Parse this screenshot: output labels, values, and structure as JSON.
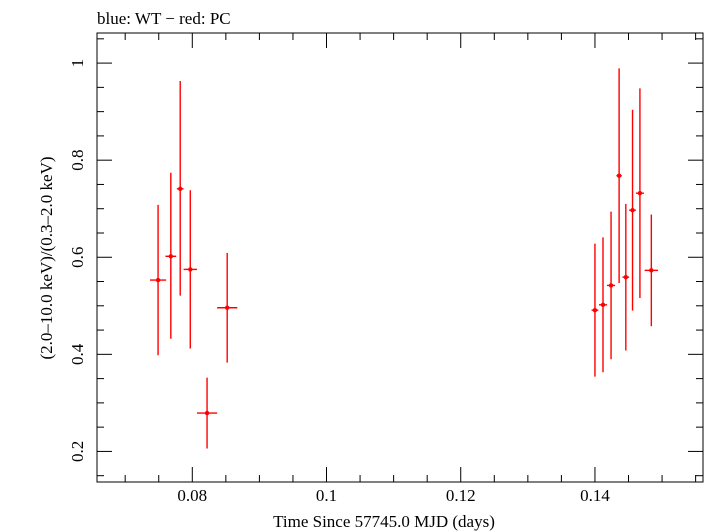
{
  "chart_data": {
    "type": "scatter",
    "title": "blue: WT − red: PC",
    "xlabel": "Time Since 57745.0 MJD (days)",
    "ylabel": "(2.0–10.0 keV)/(0.3–2.0 keV)",
    "xlim": [
      0.0658,
      0.1561
    ],
    "ylim": [
      0.137,
      1.062
    ],
    "x_ticks": [
      0.08,
      0.1,
      0.12,
      0.14
    ],
    "x_tick_labels": [
      "0.08",
      "0.1",
      "0.12",
      "0.14"
    ],
    "y_ticks": [
      0.2,
      0.4,
      0.6,
      0.8,
      1.0
    ],
    "y_tick_labels": [
      "0.2",
      "0.4",
      "0.6",
      "0.8",
      "1"
    ],
    "grid": false,
    "series": [
      {
        "color": "#ff0000",
        "points": [
          {
            "x": 0.0749,
            "xerr": 0.0012,
            "y": 0.553,
            "yerr_lo": 0.155,
            "yerr_hi": 0.155
          },
          {
            "x": 0.0768,
            "xerr": 0.0008,
            "y": 0.602,
            "yerr_lo": 0.17,
            "yerr_hi": 0.172
          },
          {
            "x": 0.0782,
            "xerr": 0.0005,
            "y": 0.741,
            "yerr_lo": 0.22,
            "yerr_hi": 0.222
          },
          {
            "x": 0.0797,
            "xerr": 0.001,
            "y": 0.575,
            "yerr_lo": 0.163,
            "yerr_hi": 0.163
          },
          {
            "x": 0.0822,
            "xerr": 0.0015,
            "y": 0.279,
            "yerr_lo": 0.073,
            "yerr_hi": 0.073
          },
          {
            "x": 0.0852,
            "xerr": 0.0015,
            "y": 0.496,
            "yerr_lo": 0.113,
            "yerr_hi": 0.113
          },
          {
            "x": 0.14,
            "xerr": 0.0005,
            "y": 0.491,
            "yerr_lo": 0.137,
            "yerr_hi": 0.137
          },
          {
            "x": 0.1412,
            "xerr": 0.0006,
            "y": 0.502,
            "yerr_lo": 0.139,
            "yerr_hi": 0.139
          },
          {
            "x": 0.1424,
            "xerr": 0.0006,
            "y": 0.542,
            "yerr_lo": 0.152,
            "yerr_hi": 0.152
          },
          {
            "x": 0.1436,
            "xerr": 0.0004,
            "y": 0.768,
            "yerr_lo": 0.221,
            "yerr_hi": 0.221
          },
          {
            "x": 0.1446,
            "xerr": 0.0005,
            "y": 0.559,
            "yerr_lo": 0.151,
            "yerr_hi": 0.151
          },
          {
            "x": 0.1456,
            "xerr": 0.0005,
            "y": 0.697,
            "yerr_lo": 0.207,
            "yerr_hi": 0.207
          },
          {
            "x": 0.1467,
            "xerr": 0.0006,
            "y": 0.732,
            "yerr_lo": 0.216,
            "yerr_hi": 0.216
          },
          {
            "x": 0.1484,
            "xerr": 0.001,
            "y": 0.573,
            "yerr_lo": 0.115,
            "yerr_hi": 0.115
          }
        ]
      }
    ]
  }
}
